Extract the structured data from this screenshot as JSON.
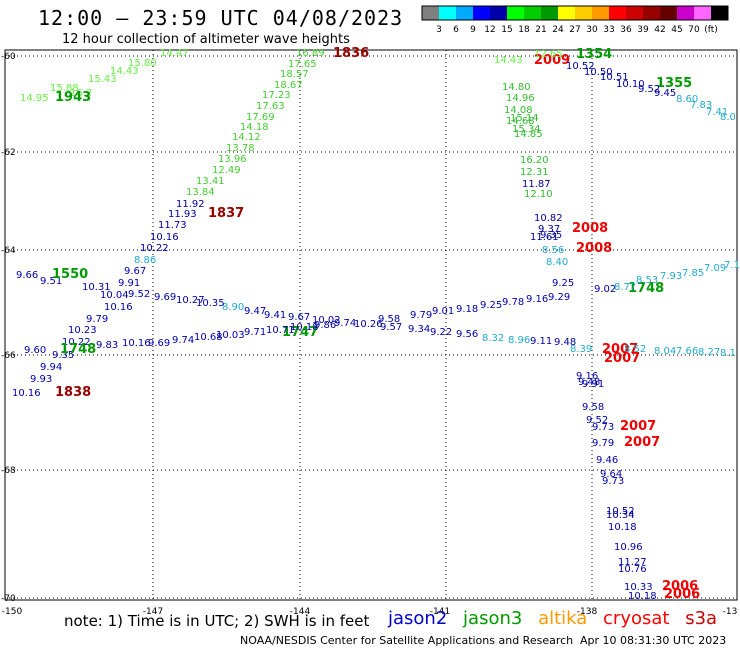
{
  "header": {
    "title": "12:00 – 23:59 UTC 04/08/2023",
    "subtitle": "12 hour collection of altimeter wave heights"
  },
  "colorbar": {
    "colors": [
      "#808080",
      "#00ffff",
      "#00aaff",
      "#0000ff",
      "#0000aa",
      "#00ff00",
      "#00cc00",
      "#009900",
      "#ffff00",
      "#ffcc00",
      "#ff9900",
      "#ff0000",
      "#cc0000",
      "#990000",
      "#660000",
      "#cc00cc",
      "#ff66ff",
      "#000000"
    ],
    "labels": [
      "3",
      "6",
      "9",
      "12",
      "15",
      "18",
      "21",
      "24",
      "27",
      "30",
      "33",
      "36",
      "39",
      "42",
      "45",
      "70",
      "(ft)"
    ]
  },
  "axes": {
    "x_ticks": [
      "-150",
      "-147",
      "-144",
      "-141",
      "-138",
      "-13"
    ],
    "y_ticks": [
      "-60",
      "-62",
      "-64",
      "-66",
      "-68",
      "-70"
    ]
  },
  "note": "note: 1) Time is in UTC; 2) SWH is in feet",
  "legend": [
    {
      "name": "jason2",
      "color": "#0000cc"
    },
    {
      "name": "jason3",
      "color": "#009900"
    },
    {
      "name": "altika",
      "color": "#ff9900"
    },
    {
      "name": "cryosat",
      "color": "#ff0000"
    },
    {
      "name": "s3a",
      "color": "#cc0000"
    }
  ],
  "credit": "NOAA/NESDIS Center for Satellite Applications and Research",
  "timestamp": "Apr 10 08:31:30 UTC 2023",
  "tracks": [
    {
      "color": "#66ee44",
      "values": [
        "14.47",
        "15.80",
        "14.95",
        "15.88",
        "15.43",
        "14.43",
        "16.2"
      ],
      "pts": [
        [
          160,
          56
        ],
        [
          128,
          66
        ],
        [
          20,
          101
        ],
        [
          50,
          91
        ],
        [
          88,
          82
        ],
        [
          110,
          74
        ],
        [
          70,
          96
        ]
      ]
    },
    {
      "color": "#009900",
      "values": [
        "1943"
      ],
      "pts": [
        [
          55,
          101
        ]
      ]
    },
    {
      "color": "#44cc33",
      "values": [
        "16.89",
        "17.65",
        "18.57",
        "18.67",
        "17.23",
        "17.63",
        "17.69",
        "14.18",
        "14.12",
        "13.78",
        "13.96",
        "12.49",
        "13.41",
        "13.84"
      ],
      "pts": [
        [
          296,
          56
        ],
        [
          288,
          67
        ],
        [
          280,
          77
        ],
        [
          274,
          88
        ],
        [
          262,
          98
        ],
        [
          256,
          109
        ],
        [
          246,
          120
        ],
        [
          240,
          130
        ],
        [
          232,
          140
        ],
        [
          226,
          151
        ],
        [
          218,
          162
        ],
        [
          212,
          173
        ],
        [
          196,
          184
        ],
        [
          186,
          195
        ]
      ]
    },
    {
      "color": "#990000",
      "values": [
        "1836",
        "1837",
        "1838"
      ],
      "pts": [
        [
          333,
          57
        ],
        [
          208,
          217
        ],
        [
          55,
          396
        ]
      ]
    },
    {
      "color": "#000099",
      "values": [
        "11.92",
        "11.93",
        "11.73",
        "10.16",
        "10.22"
      ],
      "pts": [
        [
          176,
          207
        ],
        [
          168,
          217
        ],
        [
          158,
          228
        ],
        [
          150,
          240
        ],
        [
          140,
          251
        ]
      ]
    },
    {
      "color": "#22aacc",
      "values": [
        "8.86",
        "8.56",
        "8.40",
        "8.32",
        "8.96",
        "8.90",
        "8.39"
      ],
      "pts": [
        [
          134,
          263
        ],
        [
          542,
          253
        ],
        [
          546,
          265
        ],
        [
          482,
          341
        ],
        [
          508,
          343
        ],
        [
          222,
          310
        ],
        [
          570,
          352
        ]
      ]
    },
    {
      "color": "#0000aa",
      "values": [
        "9.67",
        "9.91",
        "9.66",
        "9.51",
        "10.31",
        "10.04",
        "9.52",
        "9.69",
        "10.27",
        "10.35",
        "10.16",
        "9.79",
        "10.23",
        "10.22",
        "9.60",
        "9.35",
        "9.94",
        "9.93",
        "10.16"
      ],
      "pts": [
        [
          124,
          274
        ],
        [
          118,
          286
        ],
        [
          16,
          278
        ],
        [
          40,
          284
        ],
        [
          82,
          290
        ],
        [
          100,
          298
        ],
        [
          128,
          297
        ],
        [
          154,
          300
        ],
        [
          176,
          303
        ],
        [
          196,
          306
        ],
        [
          104,
          310
        ],
        [
          86,
          322
        ],
        [
          68,
          333
        ],
        [
          62,
          345
        ],
        [
          24,
          353
        ],
        [
          52,
          358
        ],
        [
          40,
          370
        ],
        [
          30,
          382
        ],
        [
          12,
          396
        ]
      ]
    },
    {
      "color": "#009900",
      "values": [
        "1550",
        "1748",
        "1355",
        "1354",
        "1748",
        "1747"
      ],
      "pts": [
        [
          52,
          278
        ],
        [
          60,
          353
        ],
        [
          656,
          87
        ],
        [
          576,
          58
        ],
        [
          628,
          292
        ],
        [
          282,
          336
        ]
      ]
    },
    {
      "color": "#0000aa",
      "values": [
        "9.47",
        "9.41",
        "9.67",
        "10.02",
        "9.74",
        "10.26",
        "9.58",
        "9.79",
        "9.01",
        "9.18",
        "9.25",
        "9.78",
        "9.16",
        "9.29",
        "9.25",
        "9.02"
      ],
      "pts": [
        [
          244,
          314
        ],
        [
          264,
          318
        ],
        [
          288,
          320
        ],
        [
          312,
          323
        ],
        [
          334,
          326
        ],
        [
          354,
          327
        ],
        [
          378,
          322
        ],
        [
          410,
          318
        ],
        [
          432,
          314
        ],
        [
          456,
          312
        ],
        [
          480,
          308
        ],
        [
          502,
          305
        ],
        [
          526,
          302
        ],
        [
          548,
          300
        ],
        [
          552,
          286
        ],
        [
          594,
          292
        ]
      ]
    },
    {
      "color": "#0000aa",
      "values": [
        "9.69",
        "9.74",
        "10.68",
        "10.03",
        "9.71",
        "10.71",
        "10.18",
        "9.86",
        "9.57",
        "9.34",
        "9.22",
        "9.56",
        "9.11",
        "9.48"
      ],
      "pts": [
        [
          148,
          346
        ],
        [
          172,
          343
        ],
        [
          194,
          340
        ],
        [
          216,
          338
        ],
        [
          244,
          335
        ],
        [
          266,
          333
        ],
        [
          290,
          330
        ],
        [
          314,
          328
        ],
        [
          380,
          330
        ],
        [
          408,
          332
        ],
        [
          430,
          335
        ],
        [
          456,
          337
        ],
        [
          530,
          344
        ],
        [
          554,
          345
        ]
      ]
    },
    {
      "color": "#0000aa",
      "values": [
        "9.83",
        "10.16"
      ],
      "pts": [
        [
          96,
          348
        ],
        [
          122,
          346
        ]
      ]
    },
    {
      "color": "#33bb33",
      "values": [
        "14.80",
        "14.96",
        "14.08",
        "14.68",
        "15.14",
        "15.34",
        "14.85",
        "16.20",
        "12.31",
        "12.10"
      ],
      "pts": [
        [
          502,
          90
        ],
        [
          506,
          101
        ],
        [
          504,
          113
        ],
        [
          506,
          124
        ],
        [
          510,
          121
        ],
        [
          512,
          132
        ],
        [
          514,
          137
        ],
        [
          520,
          163
        ],
        [
          520,
          175
        ],
        [
          524,
          197
        ]
      ]
    },
    {
      "color": "#000099",
      "values": [
        "11.87",
        "11.61",
        "10.82",
        "9.37",
        "9.35"
      ],
      "pts": [
        [
          522,
          187
        ],
        [
          530,
          240
        ],
        [
          534,
          221
        ],
        [
          538,
          232
        ],
        [
          540,
          238
        ]
      ]
    },
    {
      "color": "#ee0000",
      "values": [
        "2009",
        "2008",
        "2008",
        "2007",
        "2007",
        "2007",
        "2007",
        "2006",
        "2006"
      ],
      "pts": [
        [
          534,
          64
        ],
        [
          572,
          232
        ],
        [
          576,
          252
        ],
        [
          602,
          353
        ],
        [
          604,
          362
        ],
        [
          620,
          430
        ],
        [
          624,
          446
        ],
        [
          662,
          590
        ],
        [
          664,
          598
        ]
      ]
    },
    {
      "color": "#66ee44",
      "values": [
        "14.43",
        "12.65"
      ],
      "pts": [
        [
          494,
          63
        ],
        [
          534,
          57
        ]
      ]
    },
    {
      "color": "#0000aa",
      "values": [
        "10.52",
        "10.50",
        "10.51",
        "10.10",
        "9.52",
        "9.45"
      ],
      "pts": [
        [
          566,
          69
        ],
        [
          584,
          75
        ],
        [
          600,
          80
        ],
        [
          616,
          87
        ],
        [
          638,
          92
        ],
        [
          654,
          96
        ]
      ]
    },
    {
      "color": "#22aacc",
      "values": [
        "8.60",
        "7.83",
        "7.41",
        "8.0"
      ],
      "pts": [
        [
          676,
          102
        ],
        [
          690,
          108
        ],
        [
          706,
          115
        ],
        [
          720,
          120
        ]
      ]
    },
    {
      "color": "#22aacc",
      "values": [
        "8.77",
        "8.53",
        "7.93",
        "7.85",
        "7.09",
        "7.1"
      ],
      "pts": [
        [
          614,
          290
        ],
        [
          636,
          283
        ],
        [
          660,
          279
        ],
        [
          682,
          276
        ],
        [
          704,
          271
        ],
        [
          724,
          268
        ]
      ]
    },
    {
      "color": "#22aacc",
      "values": [
        "8.52",
        "8.04",
        "7.66",
        "8.27",
        "8.1"
      ],
      "pts": [
        [
          624,
          352
        ],
        [
          654,
          354
        ],
        [
          676,
          354
        ],
        [
          698,
          355
        ],
        [
          720,
          356
        ]
      ]
    },
    {
      "color": "#0000aa",
      "values": [
        "9.16",
        "9.48",
        "9.91",
        "9.58",
        "9.52",
        "9.73",
        "9.79",
        "9.46",
        "9.64",
        "9.73",
        "10.52",
        "10.34",
        "10.18",
        "10.96",
        "11.27",
        "10.76",
        "10.33",
        "10.18"
      ],
      "pts": [
        [
          576,
          379
        ],
        [
          578,
          385
        ],
        [
          582,
          387
        ],
        [
          582,
          410
        ],
        [
          586,
          423
        ],
        [
          592,
          430
        ],
        [
          592,
          446
        ],
        [
          596,
          463
        ],
        [
          600,
          477
        ],
        [
          602,
          484
        ],
        [
          606,
          514
        ],
        [
          606,
          518
        ],
        [
          608,
          530
        ],
        [
          614,
          550
        ],
        [
          618,
          565
        ],
        [
          618,
          572
        ],
        [
          624,
          590
        ],
        [
          628,
          599
        ]
      ]
    }
  ]
}
